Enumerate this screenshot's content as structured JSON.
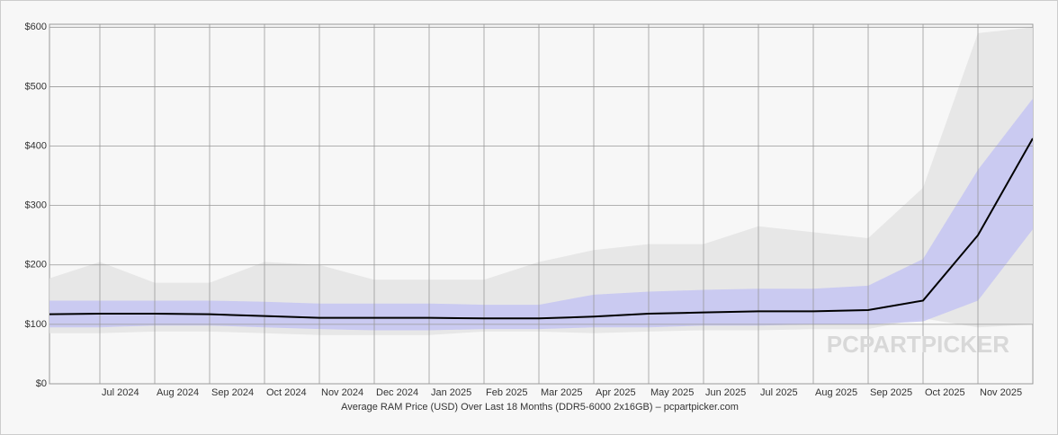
{
  "chart_data": {
    "type": "line",
    "xlabel": "Average RAM Price (USD) Over Last 18 Months (DDR5-6000 2x16GB) – pcpartpicker.com",
    "watermark": "PCPARTPICKER",
    "x": [
      "2024-06",
      "2024-07",
      "2024-08",
      "2024-09",
      "2024-10",
      "2024-11",
      "2024-12",
      "2025-01",
      "2025-02",
      "2025-03",
      "2025-04",
      "2025-05",
      "2025-06",
      "2025-07",
      "2025-08",
      "2025-09",
      "2025-10",
      "2025-11",
      "2025-12"
    ],
    "series": [
      {
        "color": "#000000",
        "values": [
          117,
          118,
          118,
          117,
          114,
          111,
          111,
          111,
          110,
          110,
          113,
          118,
          120,
          122,
          122,
          124,
          140,
          250,
          413
        ]
      }
    ],
    "band": {
      "color": "#e4e4e4",
      "high": [
        175,
        205,
        170,
        170,
        205,
        200,
        175,
        175,
        175,
        205,
        225,
        235,
        235,
        265,
        255,
        245,
        330,
        590,
        600
      ],
      "low": [
        85,
        85,
        88,
        88,
        85,
        82,
        82,
        82,
        88,
        88,
        85,
        88,
        90,
        90,
        92,
        92,
        110,
        95,
        100
      ]
    },
    "spread": {
      "color": "#c4c4f2",
      "high": [
        140,
        140,
        140,
        140,
        138,
        135,
        135,
        135,
        133,
        133,
        150,
        155,
        158,
        160,
        160,
        165,
        210,
        360,
        480
      ],
      "low": [
        95,
        95,
        98,
        98,
        95,
        92,
        90,
        90,
        92,
        92,
        95,
        95,
        98,
        98,
        100,
        100,
        105,
        140,
        260
      ]
    },
    "xlim": [
      "2024-06",
      "2025-12"
    ],
    "xticks": [
      {
        "value": "2024-07",
        "label": "Jul 2024"
      },
      {
        "value": "2024-08",
        "label": "Aug 2024"
      },
      {
        "value": "2024-09",
        "label": "Sep 2024"
      },
      {
        "value": "2024-10",
        "label": "Oct 2024"
      },
      {
        "value": "2024-11",
        "label": "Nov 2024"
      },
      {
        "value": "2024-12",
        "label": "Dec 2024"
      },
      {
        "value": "2025-01",
        "label": "Jan 2025"
      },
      {
        "value": "2025-02",
        "label": "Feb 2025"
      },
      {
        "value": "2025-03",
        "label": "Mar 2025"
      },
      {
        "value": "2025-04",
        "label": "Apr 2025"
      },
      {
        "value": "2025-05",
        "label": "May 2025"
      },
      {
        "value": "2025-06",
        "label": "Jun 2025"
      },
      {
        "value": "2025-07",
        "label": "Jul 2025"
      },
      {
        "value": "2025-08",
        "label": "Aug 2025"
      },
      {
        "value": "2025-09",
        "label": "Sep 2025"
      },
      {
        "value": "2025-10",
        "label": "Oct 2025"
      },
      {
        "value": "2025-11",
        "label": "Nov 2025"
      }
    ],
    "ylim": [
      0,
      605
    ],
    "yticks": [
      {
        "value": 0,
        "label": "$0"
      },
      {
        "value": 100,
        "label": "$100"
      },
      {
        "value": 200,
        "label": "$200"
      },
      {
        "value": 300,
        "label": "$300"
      },
      {
        "value": 400,
        "label": "$400"
      },
      {
        "value": 500,
        "label": "$500"
      },
      {
        "value": 600,
        "label": "$600"
      }
    ],
    "grid": true
  }
}
